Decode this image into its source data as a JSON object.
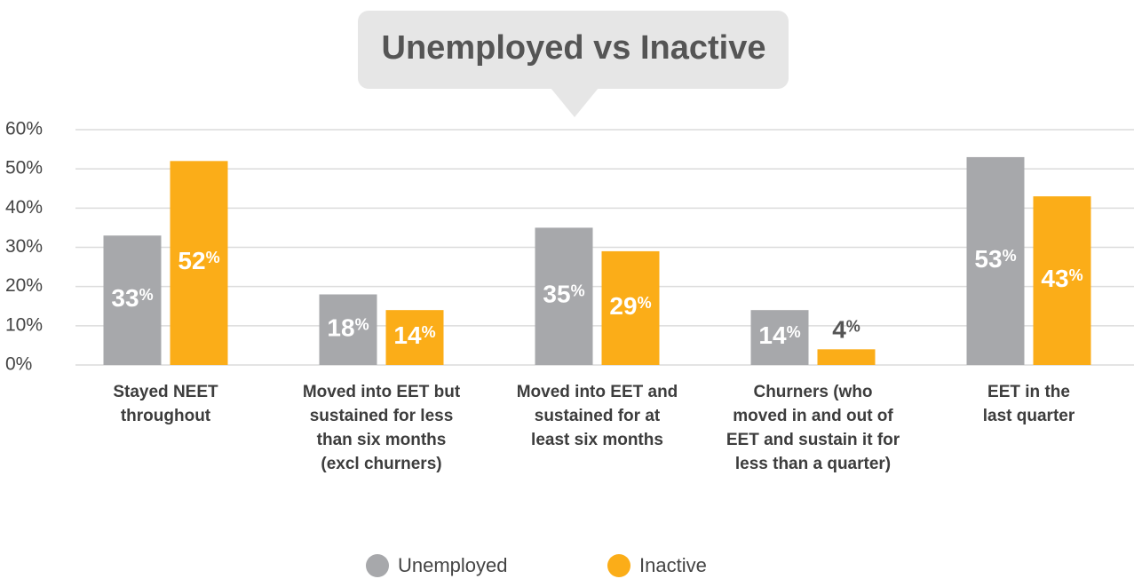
{
  "chart_data": {
    "type": "bar",
    "title": "Unemployed vs Inactive",
    "categories": [
      "Stayed NEET\nthroughout",
      "Moved into EET but\nsustained for less\nthan six months\n(excl churners)",
      "Moved into EET and\nsustained for at\nleast six months",
      "Churners (who\nmoved in and out of\nEET and sustain it for\nless than a quarter)",
      "EET in the\nlast quarter"
    ],
    "series": [
      {
        "name": "Unemployed",
        "color": "#a7a8ab",
        "values": [
          33,
          18,
          35,
          14,
          53
        ],
        "value_labels": [
          "33%",
          "18%",
          "35%",
          "14%",
          "53%"
        ]
      },
      {
        "name": "Inactive",
        "color": "#fbad18",
        "values": [
          52,
          14,
          29,
          4,
          43
        ],
        "value_labels": [
          "52%",
          "14%",
          "29%",
          "4%",
          "43%"
        ]
      }
    ],
    "ylim": [
      0,
      60
    ],
    "yticks": [
      {
        "value": 0,
        "label": "0%"
      },
      {
        "value": 10,
        "label": "10%"
      },
      {
        "value": 20,
        "label": "20%"
      },
      {
        "value": 30,
        "label": "30%"
      },
      {
        "value": 40,
        "label": "40%"
      },
      {
        "value": 50,
        "label": "50%"
      },
      {
        "value": 60,
        "label": "60%"
      }
    ],
    "grid": true,
    "legend": "bottom"
  }
}
